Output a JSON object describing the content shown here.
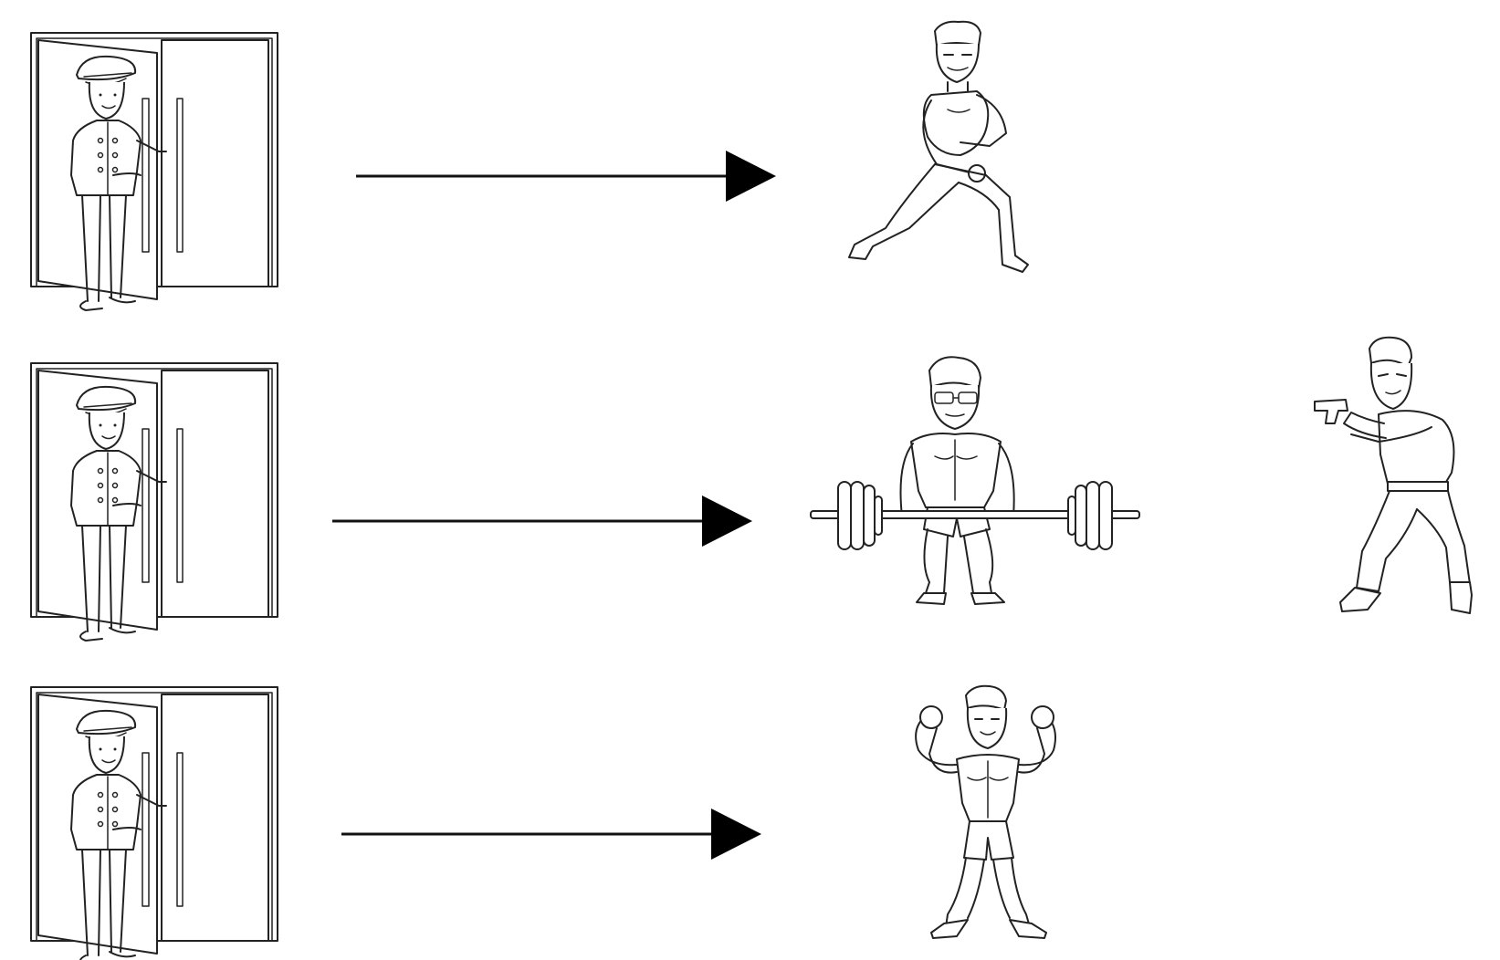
{
  "diagram": {
    "rows": [
      {
        "doorman": "doorman-icon",
        "arrow": "arrow-icon",
        "result": "martial-artist-icon"
      },
      {
        "doorman": "doorman-icon",
        "arrow": "arrow-icon",
        "result": "weightlifter-icon"
      },
      {
        "doorman": "doorman-icon",
        "arrow": "arrow-icon",
        "result": "bodybuilder-icon"
      }
    ],
    "extra": "gunman-icon",
    "colors": {
      "line": "#222222",
      "background": "#ffffff"
    }
  }
}
